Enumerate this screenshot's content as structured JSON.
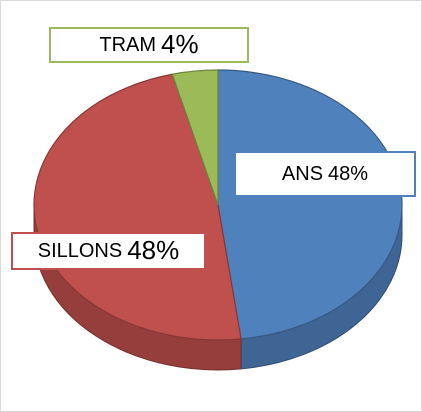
{
  "chart_data": {
    "type": "pie3d",
    "categories": [
      "ANS",
      "SILLONS",
      "TRAM"
    ],
    "values": [
      48,
      48,
      4
    ],
    "value_labels": [
      "48%",
      "48%",
      "4%"
    ],
    "colors": [
      "#4f81bd",
      "#c0504d",
      "#9bbb59"
    ]
  }
}
